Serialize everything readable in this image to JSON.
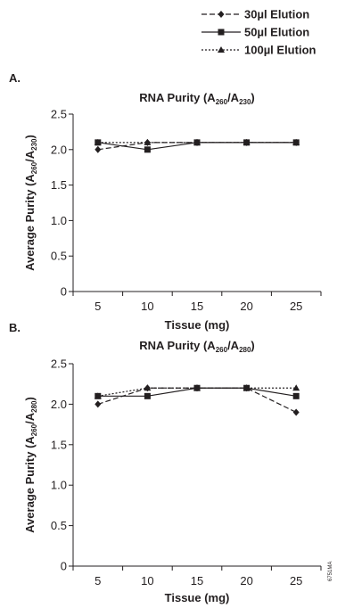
{
  "legend": {
    "entries": [
      {
        "label": "30µl Elution",
        "dash": "dashed",
        "marker": "diamond"
      },
      {
        "label": "50µl Elution",
        "dash": "solid",
        "marker": "square"
      },
      {
        "label": "100µl Elution",
        "dash": "dotted",
        "marker": "triangle"
      }
    ]
  },
  "figure_code": "6751MA",
  "chart_data": [
    {
      "panel": "A.",
      "type": "line",
      "title": {
        "base": "RNA Purity (A",
        "sub1": "260",
        "mid": "/A",
        "sub2": "230",
        "end": ")"
      },
      "xlabel": "Tissue (mg)",
      "ylabel": {
        "base": "Average Purity (A",
        "sub1": "260",
        "mid": "/A",
        "sub2": "230",
        "end": ")"
      },
      "x": [
        5,
        10,
        15,
        20,
        25
      ],
      "xlim": [
        2.5,
        27.5
      ],
      "ylim": [
        0,
        2.5
      ],
      "yticks": [
        "0",
        "0.5",
        "1.0",
        "1.5",
        "2.0",
        "2.5"
      ],
      "series": [
        {
          "name": "30µl Elution",
          "values": [
            2.0,
            2.1,
            2.1,
            2.1,
            2.1
          ]
        },
        {
          "name": "50µl Elution",
          "values": [
            2.1,
            2.0,
            2.1,
            2.1,
            2.1
          ]
        },
        {
          "name": "100µl Elution",
          "values": [
            2.1,
            2.1,
            2.1,
            2.1,
            2.1
          ]
        }
      ]
    },
    {
      "panel": "B.",
      "type": "line",
      "title": {
        "base": "RNA Purity (A",
        "sub1": "260",
        "mid": "/A",
        "sub2": "280",
        "end": ")"
      },
      "xlabel": "Tissue (mg)",
      "ylabel": {
        "base": "Average Purity (A",
        "sub1": "260",
        "mid": "/A",
        "sub2": "280",
        "end": ")"
      },
      "x": [
        5,
        10,
        15,
        20,
        25
      ],
      "xlim": [
        2.5,
        27.5
      ],
      "ylim": [
        0,
        2.5
      ],
      "yticks": [
        "0",
        "0.5",
        "1.0",
        "1.5",
        "2.0",
        "2.5"
      ],
      "series": [
        {
          "name": "30µl Elution",
          "values": [
            2.0,
            2.2,
            2.2,
            2.2,
            1.9
          ]
        },
        {
          "name": "50µl Elution",
          "values": [
            2.1,
            2.1,
            2.2,
            2.2,
            2.1
          ]
        },
        {
          "name": "100µl Elution",
          "values": [
            2.1,
            2.2,
            2.2,
            2.2,
            2.2
          ]
        }
      ]
    }
  ]
}
